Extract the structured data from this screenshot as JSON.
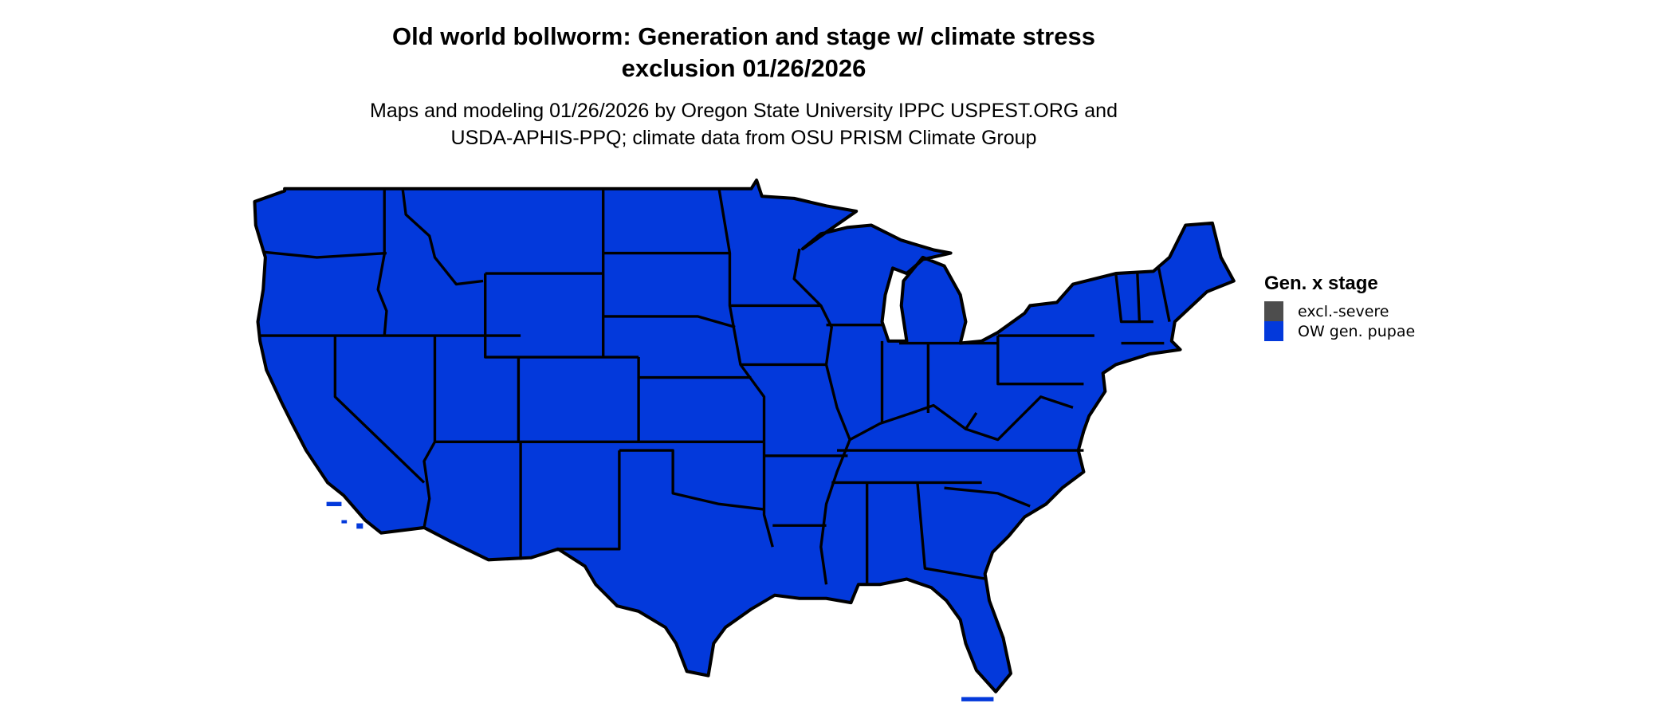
{
  "title": {
    "line1": "Old world bollworm: Generation and stage w/ climate stress",
    "line2": "exclusion 01/26/2026"
  },
  "subtitle": {
    "line1": "Maps and modeling 01/26/2026 by Oregon State University IPPC USPEST.ORG and",
    "line2": "USDA-APHIS-PPQ; climate data from OSU PRISM Climate Group"
  },
  "map": {
    "region": "contiguous United States",
    "fill_color": "#0339db",
    "border_color": "#000000"
  },
  "legend": {
    "title": "Gen. x stage",
    "items": [
      {
        "label": "excl.-severe",
        "color": "#4d4d4d"
      },
      {
        "label": "OW gen. pupae",
        "color": "#0339db"
      }
    ]
  }
}
